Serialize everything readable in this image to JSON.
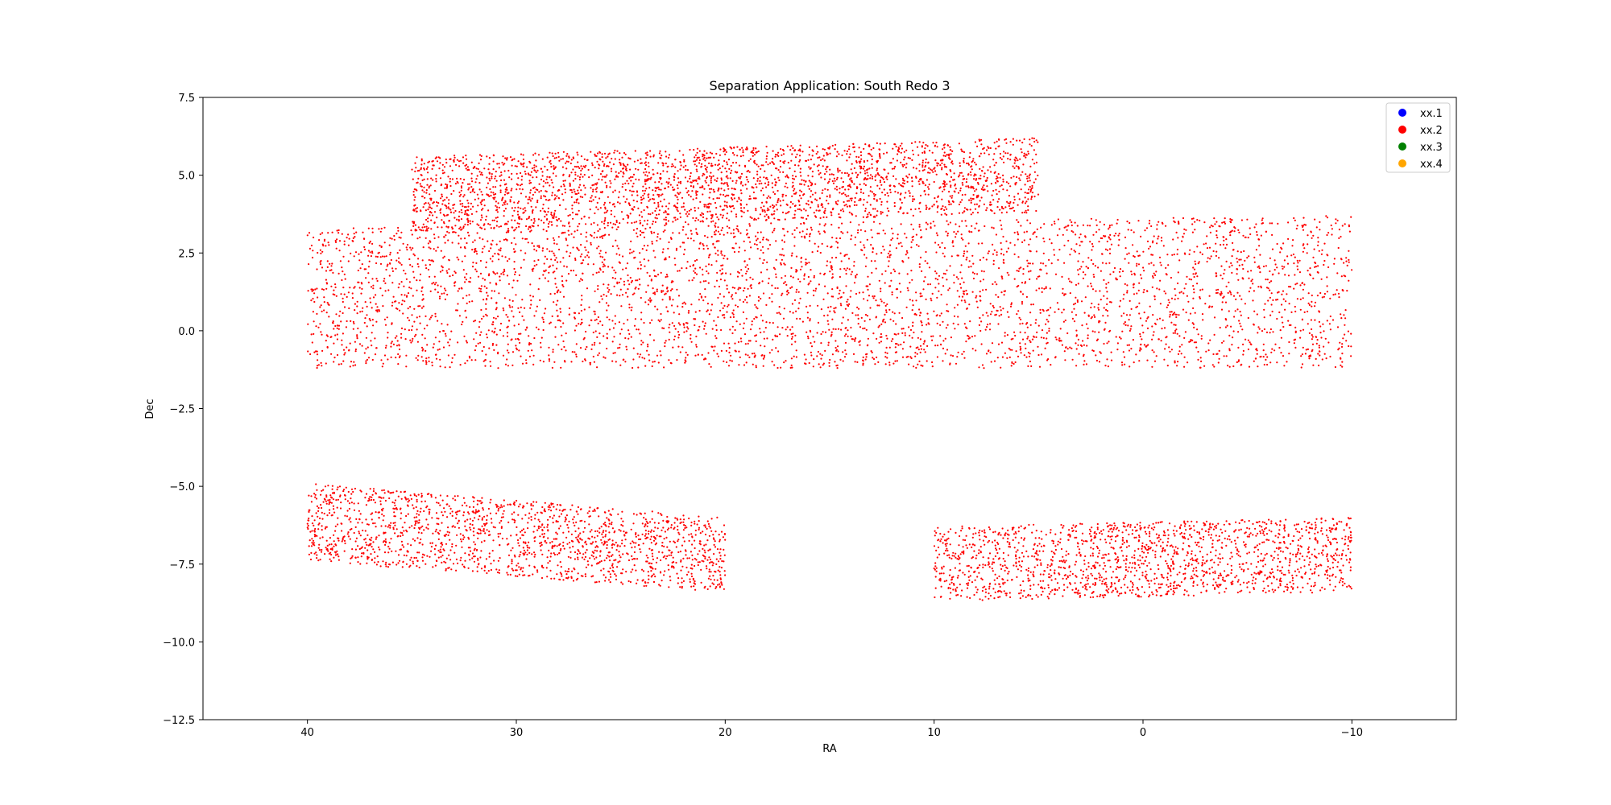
{
  "chart_data": {
    "type": "scatter",
    "title": "Separation Application: South Redo 3",
    "xlabel": "RA",
    "ylabel": "Dec",
    "xlim": [
      45,
      -15
    ],
    "ylim": [
      -12.5,
      7.5
    ],
    "x_ticks": [
      40,
      30,
      20,
      10,
      0,
      -10
    ],
    "x_tick_labels": [
      "40",
      "30",
      "20",
      "10",
      "0",
      "−10"
    ],
    "y_ticks": [
      7.5,
      5.0,
      2.5,
      0.0,
      -2.5,
      -5.0,
      -7.5,
      -10.0,
      -12.5
    ],
    "y_tick_labels": [
      "7.5",
      "5.0",
      "2.5",
      "0.0",
      "−2.5",
      "−5.0",
      "−7.5",
      "−10.0",
      "−12.5"
    ],
    "grid": false,
    "legend_position": "top-right",
    "series": [
      {
        "name": "xx.1",
        "color": "#0000ff",
        "points": []
      },
      {
        "name": "xx.2",
        "color": "#ff0000",
        "regions": [
          {
            "ra": [
              40,
              -10
            ],
            "dec_lower": [
              -1.2,
              -1.2
            ],
            "dec_upper": [
              3.3,
              3.7
            ],
            "count": 4200
          },
          {
            "ra": [
              35,
              5
            ],
            "dec_lower": [
              3.2,
              3.8
            ],
            "dec_upper": [
              5.6,
              6.2
            ],
            "count": 2700
          },
          {
            "ra": [
              40,
              20
            ],
            "dec_lower": [
              -7.4,
              -8.4
            ],
            "dec_upper": [
              -4.9,
              -6.0
            ],
            "count": 1700
          },
          {
            "ra": [
              10,
              -10
            ],
            "dec_lower": [
              -8.7,
              -8.4
            ],
            "dec_upper": [
              -6.3,
              -6.0
            ],
            "count": 1700
          }
        ]
      },
      {
        "name": "xx.3",
        "color": "#008000",
        "points": []
      },
      {
        "name": "xx.4",
        "color": "#ffa500",
        "points": []
      }
    ]
  }
}
